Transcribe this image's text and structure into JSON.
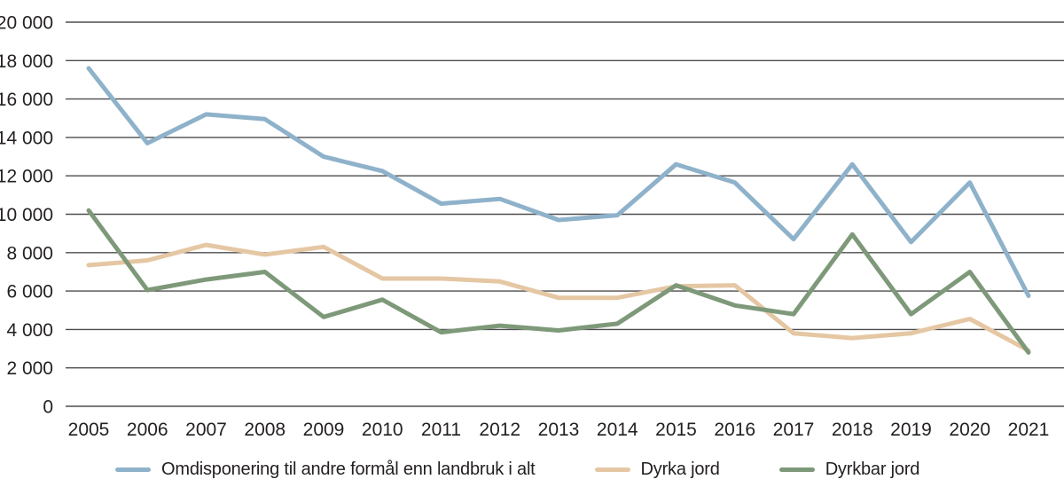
{
  "chart_data": {
    "type": "line",
    "title": "",
    "xlabel": "",
    "ylabel": "",
    "x_labels": [
      "2005",
      "2006",
      "2007",
      "2008",
      "2009",
      "2010",
      "2011",
      "2012",
      "2013",
      "2014",
      "2015",
      "2016",
      "2017",
      "2018",
      "2019",
      "2020",
      "2021"
    ],
    "y_tick_labels": [
      "0",
      "2 000",
      "4 000",
      "6 000",
      "8 000",
      "10 000",
      "12 000",
      "14 000",
      "16 000",
      "18 000",
      "20 000"
    ],
    "ylim": [
      0,
      20000
    ],
    "ytick_step": 2000,
    "grid": "horizontal",
    "gridline_color": "#4d4d4f",
    "text_color": "#231f20",
    "legend_position": "bottom",
    "series": [
      {
        "name": "Omdisponering til andre formål enn landbruk i alt",
        "color": "#8fb2cb",
        "values": [
          17600,
          13700,
          15200,
          14950,
          13000,
          12250,
          10550,
          10800,
          9700,
          9950,
          12600,
          11650,
          8700,
          12600,
          8550,
          11650,
          5750
        ]
      },
      {
        "name": "Dyrka jord",
        "color": "#e5c7a4",
        "values": [
          7350,
          7600,
          8400,
          7900,
          8300,
          6650,
          6650,
          6500,
          5650,
          5650,
          6250,
          6300,
          3800,
          3550,
          3800,
          4550,
          2900
        ]
      },
      {
        "name": "Dyrkbar jord",
        "color": "#7e9979",
        "values": [
          10200,
          6050,
          6600,
          7000,
          4650,
          5550,
          3850,
          4200,
          3950,
          4300,
          6300,
          5250,
          4800,
          8950,
          4800,
          7000,
          2800
        ]
      }
    ]
  }
}
